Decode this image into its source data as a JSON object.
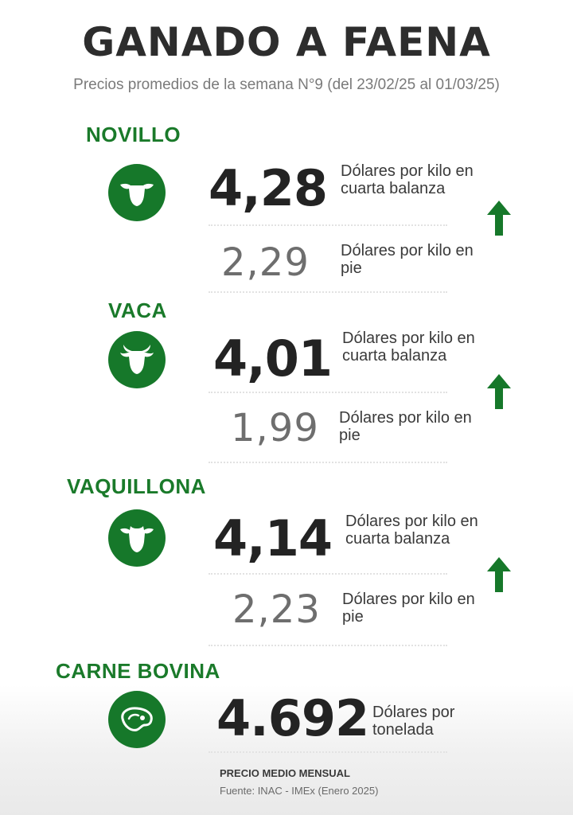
{
  "header": {
    "title": "GANADO A FAENA",
    "subtitle": "Precios promedios de la semana N°9 (del 23/02/25 al 01/03/25)"
  },
  "categories": [
    {
      "name": "NOVILLO",
      "icon": "cow-head-icon",
      "price_cuarta_balanza": "4,28",
      "unit_cuarta_balanza": "Dólares por kilo en cuarta balanza",
      "price_en_pie": "2,29",
      "unit_en_pie": "Dólares por kilo en pie",
      "trend": "up"
    },
    {
      "name": "VACA",
      "icon": "cow-head-horns-icon",
      "price_cuarta_balanza": "4,01",
      "unit_cuarta_balanza": "Dólares por kilo en cuarta balanza",
      "price_en_pie": "1,99",
      "unit_en_pie": "Dólares por kilo en pie",
      "trend": "up"
    },
    {
      "name": "VAQUILLONA",
      "icon": "heifer-head-icon",
      "price_cuarta_balanza": "4,14",
      "unit_cuarta_balanza": "Dólares por kilo en cuarta balanza",
      "price_en_pie": "2,23",
      "unit_en_pie": "Dólares por kilo en pie",
      "trend": "up"
    }
  ],
  "carne": {
    "name": "CARNE BOVINA",
    "icon": "steak-icon",
    "price": "4.692",
    "unit": "Dólares por tonelada",
    "note": "PRECIO MEDIO MENSUAL",
    "source": "Fuente: INAC - IMEx (Enero 2025)"
  },
  "colors": {
    "accent_green": "#16782a",
    "title_dark": "#2d2d2d",
    "subtitle_gray": "#7a7a7a"
  }
}
